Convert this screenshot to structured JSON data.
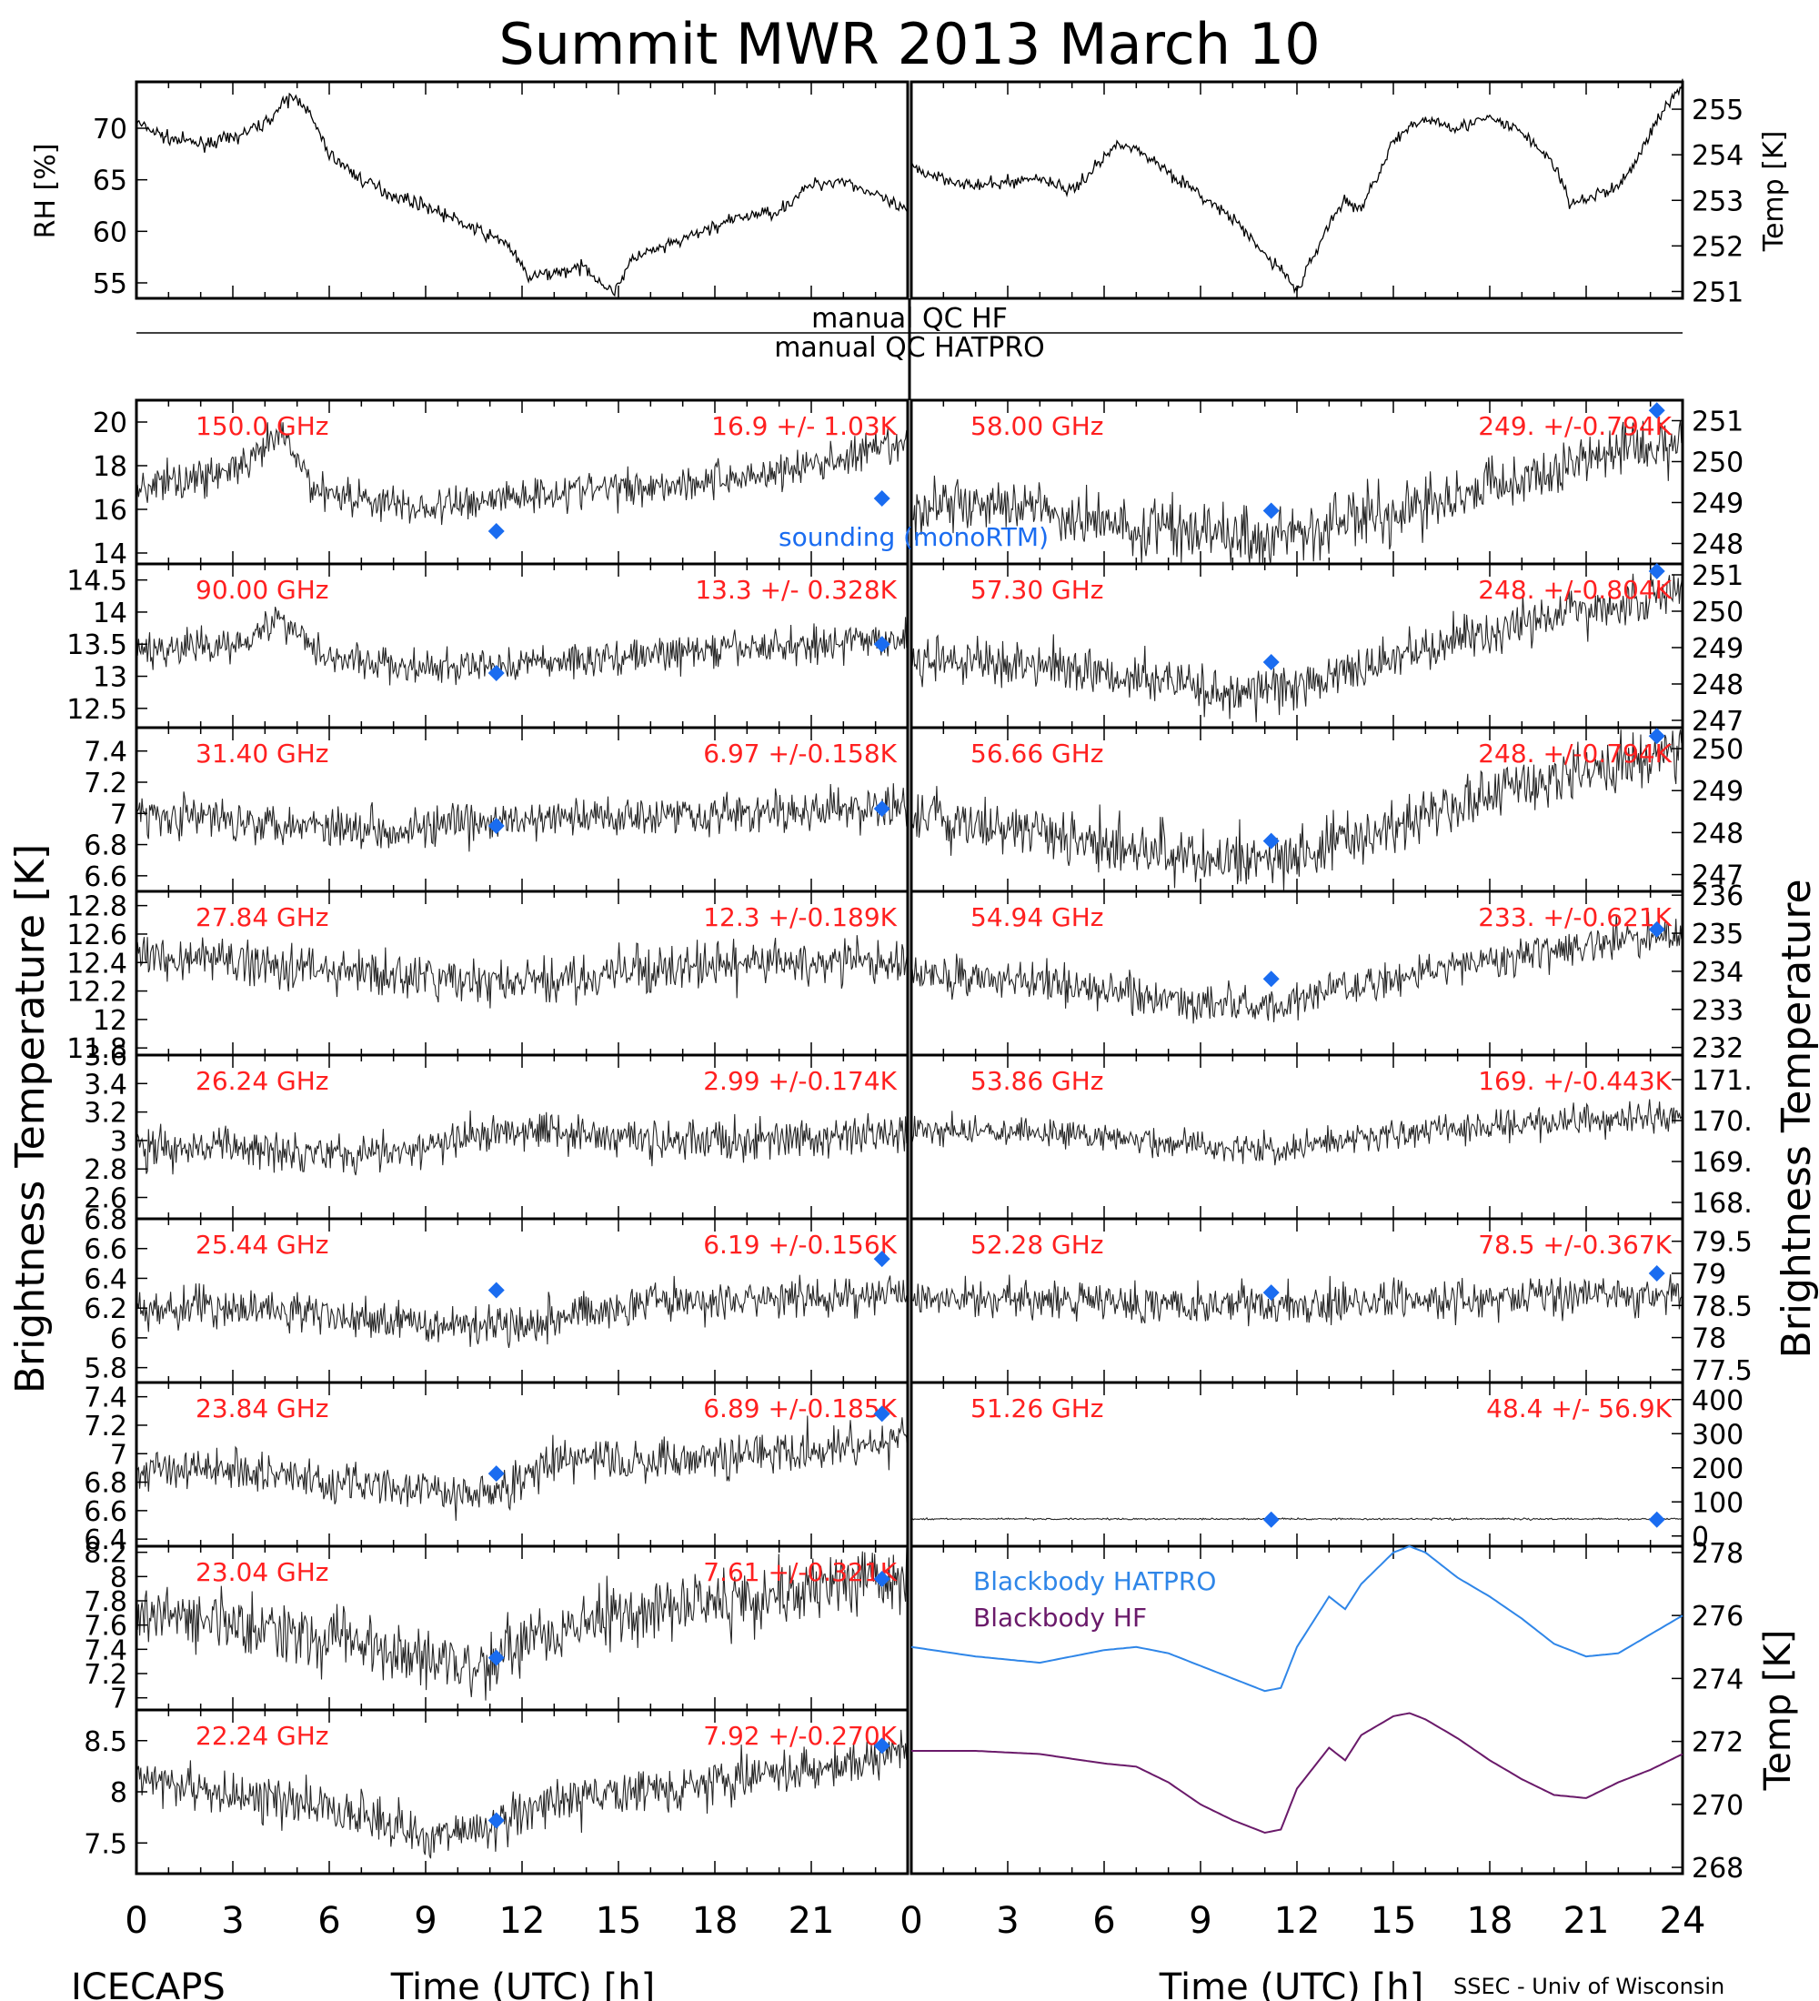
{
  "figure": {
    "title": "Summit MWR 2013 March 10",
    "ylabel_left": "Brightness Temperature [K]",
    "ylabel_right": "Brightness Temperature",
    "footer_left": "ICECAPS",
    "footer_right": "SSEC - Univ of Wisconsin",
    "qc_hf": "manual QC HF",
    "qc_hatpro": "manual QC HATPRO",
    "sounding_label": "sounding (monoRTM)",
    "colors": {
      "data": "#000000",
      "annotation": "#ff2020",
      "sounding": "#1a6cf0",
      "hatpro": "#2f86e8",
      "hf": "#6a1a6a"
    }
  },
  "chart_data": [
    {
      "type": "line",
      "panel": "top-left",
      "ylabel": "RH [%]",
      "ylim": [
        53.5,
        74.5
      ],
      "xlim": [
        0,
        24
      ],
      "yticks": [
        55,
        60,
        65,
        70
      ],
      "x": [
        0,
        1,
        2,
        3,
        4,
        4.8,
        5.2,
        6,
        7,
        8,
        9,
        10,
        11,
        11.5,
        12.2,
        13,
        14,
        14.8,
        15.5,
        16.5,
        18,
        19,
        20,
        21,
        22,
        23,
        23.9
      ],
      "values": [
        70.5,
        69,
        68.5,
        69,
        70.5,
        73,
        72.5,
        67.5,
        65,
        63.5,
        62.5,
        61,
        59.5,
        59,
        55.5,
        56,
        56.5,
        54,
        57.5,
        58.5,
        60.5,
        61.5,
        62,
        64.5,
        65,
        63.5,
        62
      ]
    },
    {
      "type": "line",
      "panel": "top-right",
      "ylabel": "Temp [K]",
      "ylim": [
        250.85,
        255.6
      ],
      "xlim": [
        0,
        24
      ],
      "yticks": [
        251,
        252,
        253,
        254,
        255
      ],
      "x": [
        0,
        2,
        4,
        5,
        6.5,
        7.5,
        9,
        10,
        11,
        11.5,
        12,
        13,
        13.5,
        14,
        15,
        16,
        17,
        18,
        19,
        20,
        20.5,
        22,
        22.5,
        23,
        24
      ],
      "values": [
        253.7,
        253.3,
        253.5,
        253.2,
        254.3,
        253.9,
        253.1,
        252.6,
        251.8,
        251.5,
        251.0,
        252.5,
        253.0,
        252.8,
        254.3,
        254.8,
        254.6,
        254.8,
        254.5,
        253.8,
        252.9,
        253.3,
        253.8,
        254.5,
        255.6
      ]
    },
    {
      "type": "line",
      "panel": "left-1",
      "frequency": "150.0 GHz",
      "stats": "16.9 +/- 1.03K",
      "ylim": [
        13.5,
        21
      ],
      "yticks": [
        14,
        16,
        18,
        20
      ],
      "x": [
        0,
        2,
        3.5,
        4.5,
        5.5,
        7,
        9,
        11,
        13,
        15,
        17,
        19,
        21,
        24
      ],
      "values": [
        17,
        17.5,
        18,
        19.5,
        17,
        16.5,
        16,
        16.5,
        16.8,
        17,
        17.2,
        17.5,
        18,
        19
      ],
      "noise": 1.03,
      "sounding": [
        {
          "x": 11.2,
          "y": 15
        },
        {
          "x": 23.2,
          "y": 16.5
        }
      ]
    },
    {
      "type": "line",
      "panel": "left-2",
      "frequency": "90.00 GHz",
      "stats": "13.3 +/- 0.328K",
      "ylim": [
        12.2,
        14.75
      ],
      "yticks": [
        12.5,
        13.0,
        13.5,
        14.0,
        14.5
      ],
      "x": [
        0,
        3,
        4.5,
        6,
        9,
        12,
        15,
        18,
        21,
        24
      ],
      "values": [
        13.4,
        13.5,
        13.9,
        13.3,
        13.1,
        13.2,
        13.3,
        13.4,
        13.5,
        13.6
      ],
      "noise": 0.33,
      "sounding": [
        {
          "x": 11.2,
          "y": 13.05
        },
        {
          "x": 23.2,
          "y": 13.5
        }
      ]
    },
    {
      "type": "line",
      "panel": "left-3",
      "frequency": "31.40 GHz",
      "stats": "6.97 +/-0.158K",
      "ylim": [
        6.5,
        7.55
      ],
      "yticks": [
        6.6,
        6.8,
        7.0,
        7.2,
        7.4
      ],
      "x": [
        0,
        4,
        8,
        12,
        16,
        20,
        24
      ],
      "values": [
        7.0,
        6.95,
        6.9,
        6.95,
        7.0,
        7.0,
        7.05
      ],
      "noise": 0.16,
      "sounding": [
        {
          "x": 11.2,
          "y": 6.92
        },
        {
          "x": 23.2,
          "y": 7.03
        }
      ]
    },
    {
      "type": "line",
      "panel": "left-4",
      "frequency": "27.84 GHz",
      "stats": "12.3 +/-0.189K",
      "ylim": [
        11.75,
        12.9
      ],
      "yticks": [
        11.8,
        12.0,
        12.2,
        12.4,
        12.6,
        12.8
      ],
      "x": [
        0,
        4,
        8,
        12,
        16,
        20,
        24
      ],
      "values": [
        12.45,
        12.4,
        12.3,
        12.25,
        12.35,
        12.4,
        12.4
      ],
      "noise": 0.19,
      "sounding": []
    },
    {
      "type": "line",
      "panel": "left-5",
      "frequency": "26.24 GHz",
      "stats": "2.99 +/-0.174K",
      "ylim": [
        2.45,
        3.6
      ],
      "yticks": [
        2.6,
        2.8,
        3.0,
        3.2,
        3.4,
        3.6
      ],
      "x": [
        0,
        4,
        8,
        12,
        16,
        20,
        24
      ],
      "values": [
        2.95,
        2.95,
        2.9,
        3.1,
        3.0,
        3.0,
        3.05
      ],
      "noise": 0.17,
      "sounding": []
    },
    {
      "type": "line",
      "panel": "left-6",
      "frequency": "25.44 GHz",
      "stats": "6.19 +/-0.156K",
      "ylim": [
        5.7,
        6.8
      ],
      "yticks": [
        5.8,
        6.0,
        6.2,
        6.4,
        6.6,
        6.8
      ],
      "x": [
        0,
        4,
        8,
        12,
        16,
        20,
        24
      ],
      "values": [
        6.2,
        6.2,
        6.1,
        6.1,
        6.25,
        6.25,
        6.3
      ],
      "noise": 0.16,
      "sounding": [
        {
          "x": 11.2,
          "y": 6.32
        },
        {
          "x": 23.2,
          "y": 6.53
        }
      ]
    },
    {
      "type": "line",
      "panel": "left-7",
      "frequency": "23.84 GHz",
      "stats": "6.89 +/-0.185K",
      "ylim": [
        6.35,
        7.5
      ],
      "yticks": [
        6.4,
        6.6,
        6.8,
        7.0,
        7.2,
        7.4
      ],
      "x": [
        0,
        3,
        6,
        9,
        11,
        13,
        16,
        19,
        22,
        24
      ],
      "values": [
        6.9,
        6.9,
        6.8,
        6.75,
        6.7,
        6.95,
        6.95,
        7.0,
        7.05,
        7.1
      ],
      "noise": 0.18,
      "sounding": [
        {
          "x": 11.2,
          "y": 6.86
        },
        {
          "x": 23.2,
          "y": 7.28
        }
      ]
    },
    {
      "type": "line",
      "panel": "left-8",
      "frequency": "23.04 GHz",
      "stats": "7.61 +/-0.321K",
      "ylim": [
        6.9,
        8.25
      ],
      "yticks": [
        7.0,
        7.2,
        7.4,
        7.6,
        7.8,
        8.0,
        8.2
      ],
      "x": [
        0,
        3,
        6,
        9,
        10.5,
        12,
        15,
        18,
        21,
        24
      ],
      "values": [
        7.7,
        7.6,
        7.5,
        7.35,
        7.25,
        7.45,
        7.7,
        7.8,
        7.9,
        8.0
      ],
      "noise": 0.32,
      "sounding": [
        {
          "x": 11.2,
          "y": 7.33
        },
        {
          "x": 23.2,
          "y": 7.98
        }
      ]
    },
    {
      "type": "line",
      "panel": "left-9",
      "frequency": "22.24 GHz",
      "stats": "7.92 +/-0.270K",
      "ylim": [
        7.2,
        8.8
      ],
      "yticks": [
        7.5,
        8.0,
        8.5
      ],
      "x": [
        0,
        3,
        6,
        9,
        10.5,
        12,
        15,
        18,
        21,
        24
      ],
      "values": [
        8.15,
        7.95,
        7.85,
        7.6,
        7.6,
        7.8,
        8.0,
        8.1,
        8.2,
        8.4
      ],
      "noise": 0.27,
      "sounding": [
        {
          "x": 11.2,
          "y": 7.72
        },
        {
          "x": 23.2,
          "y": 8.45
        }
      ]
    },
    {
      "type": "line",
      "panel": "right-1",
      "frequency": "58.00 GHz",
      "stats": "249. +/-0.794K",
      "ylim": [
        247.5,
        251.5
      ],
      "yticks": [
        248,
        249,
        250,
        251
      ],
      "x": [
        0,
        3,
        6,
        9,
        11,
        14,
        17,
        20,
        24
      ],
      "values": [
        248.9,
        248.9,
        248.5,
        248.3,
        248.2,
        248.6,
        249.2,
        249.8,
        250.6
      ],
      "noise": 0.79,
      "sounding": [
        {
          "x": 11.2,
          "y": 248.8
        },
        {
          "x": 23.2,
          "y": 251.25
        }
      ]
    },
    {
      "type": "line",
      "panel": "right-2",
      "frequency": "57.30 GHz",
      "stats": "248. +/-0.804K",
      "ylim": [
        246.8,
        251.3
      ],
      "yticks": [
        247,
        248,
        249,
        250,
        251
      ],
      "x": [
        0,
        3,
        6,
        9,
        11,
        14,
        17,
        20,
        24
      ],
      "values": [
        248.7,
        248.6,
        248.3,
        247.9,
        247.8,
        248.4,
        249.2,
        249.9,
        250.6
      ],
      "noise": 0.8,
      "sounding": [
        {
          "x": 11.2,
          "y": 248.6
        },
        {
          "x": 23.2,
          "y": 251.1
        }
      ]
    },
    {
      "type": "line",
      "panel": "right-3",
      "frequency": "56.66 GHz",
      "stats": "248. +/-0.794K",
      "ylim": [
        246.6,
        250.5
      ],
      "yticks": [
        247,
        248,
        249,
        250
      ],
      "x": [
        0,
        3,
        6,
        9,
        11,
        14,
        17,
        20,
        24
      ],
      "values": [
        248.3,
        248.1,
        247.8,
        247.4,
        247.3,
        247.9,
        248.6,
        249.3,
        249.9
      ],
      "noise": 0.79,
      "sounding": [
        {
          "x": 11.2,
          "y": 247.8
        },
        {
          "x": 23.2,
          "y": 250.3
        }
      ]
    },
    {
      "type": "line",
      "panel": "right-4",
      "frequency": "54.94 GHz",
      "stats": "233. +/-0.621K",
      "ylim": [
        231.8,
        236.1
      ],
      "yticks": [
        232,
        233,
        234,
        235,
        236
      ],
      "x": [
        0,
        3,
        6,
        9,
        11,
        14,
        17,
        20,
        24
      ],
      "values": [
        234.0,
        233.8,
        233.5,
        233.2,
        233.1,
        233.6,
        234.2,
        234.6,
        235.0
      ],
      "noise": 0.62,
      "sounding": [
        {
          "x": 11.2,
          "y": 233.8
        },
        {
          "x": 23.2,
          "y": 235.1
        }
      ]
    },
    {
      "type": "line",
      "panel": "right-5",
      "frequency": "53.86 GHz",
      "stats": "169. +/-0.443K",
      "ylim": [
        167.6,
        171.6
      ],
      "yticks": [
        168,
        169,
        170,
        171
      ],
      "yticklabels": [
        "168.",
        "169.",
        "170.",
        "171."
      ],
      "x": [
        0,
        3,
        6,
        9,
        11,
        14,
        17,
        20,
        24
      ],
      "values": [
        169.8,
        169.7,
        169.6,
        169.4,
        169.3,
        169.6,
        169.8,
        170.0,
        170.1
      ],
      "noise": 0.44,
      "sounding": []
    },
    {
      "type": "line",
      "panel": "right-6",
      "frequency": "52.28 GHz",
      "stats": "78.5 +/-0.367K",
      "ylim": [
        77.3,
        79.85
      ],
      "yticks": [
        77.5,
        78.0,
        78.5,
        79.0,
        79.5
      ],
      "x": [
        0,
        4,
        8,
        12,
        16,
        20,
        24
      ],
      "values": [
        78.6,
        78.6,
        78.5,
        78.5,
        78.6,
        78.6,
        78.7
      ],
      "noise": 0.37,
      "sounding": [
        {
          "x": 11.2,
          "y": 78.7
        },
        {
          "x": 23.2,
          "y": 79.0
        }
      ]
    },
    {
      "type": "line",
      "panel": "right-7",
      "frequency": "51.26 GHz",
      "stats": "48.4 +/- 56.9K",
      "ylim": [
        -30,
        450
      ],
      "yticks": [
        0,
        100,
        200,
        300,
        400
      ],
      "x": [
        0,
        24
      ],
      "values": [
        50,
        50
      ],
      "noise": 3,
      "sounding": [
        {
          "x": 11.2,
          "y": 48
        },
        {
          "x": 23.2,
          "y": 48
        }
      ]
    },
    {
      "type": "line",
      "panel": "right-8",
      "ylabel": "Temp [K]",
      "ylim": [
        267.8,
        278.2
      ],
      "xlim": [
        0,
        24
      ],
      "yticks": [
        268,
        270,
        272,
        274,
        276,
        278
      ],
      "series": [
        {
          "name": "Blackbody HATPRO",
          "x": [
            0,
            2,
            4,
            6,
            7,
            8,
            9,
            10,
            11,
            11.5,
            12,
            13,
            13.5,
            14,
            15,
            15.5,
            16,
            17,
            18,
            19,
            20,
            21,
            22,
            23,
            24
          ],
          "values": [
            275.0,
            274.7,
            274.5,
            274.9,
            275.0,
            274.8,
            274.4,
            274.0,
            273.6,
            273.7,
            275.0,
            276.6,
            276.2,
            277.0,
            278.0,
            278.2,
            278.0,
            277.2,
            276.6,
            275.9,
            275.1,
            274.7,
            274.8,
            275.4,
            276.0
          ]
        },
        {
          "name": "Blackbody HF",
          "x": [
            0,
            2,
            4,
            6,
            7,
            8,
            9,
            10,
            11,
            11.5,
            12,
            13,
            13.5,
            14,
            15,
            15.5,
            16,
            17,
            18,
            19,
            20,
            21,
            22,
            23,
            24
          ],
          "values": [
            271.7,
            271.7,
            271.6,
            271.3,
            271.2,
            270.7,
            270.0,
            269.5,
            269.1,
            269.2,
            270.5,
            271.8,
            271.4,
            272.2,
            272.8,
            272.9,
            272.7,
            272.1,
            271.4,
            270.8,
            270.3,
            270.2,
            270.7,
            271.1,
            271.6
          ]
        }
      ]
    }
  ],
  "xaxis": {
    "label": "Time (UTC) [h]",
    "ticks_left": [
      "0",
      "3",
      "6",
      "9",
      "12",
      "15",
      "18",
      "21"
    ],
    "ticks_right": [
      "0",
      "3",
      "6",
      "9",
      "12",
      "15",
      "18",
      "21",
      "24"
    ]
  }
}
